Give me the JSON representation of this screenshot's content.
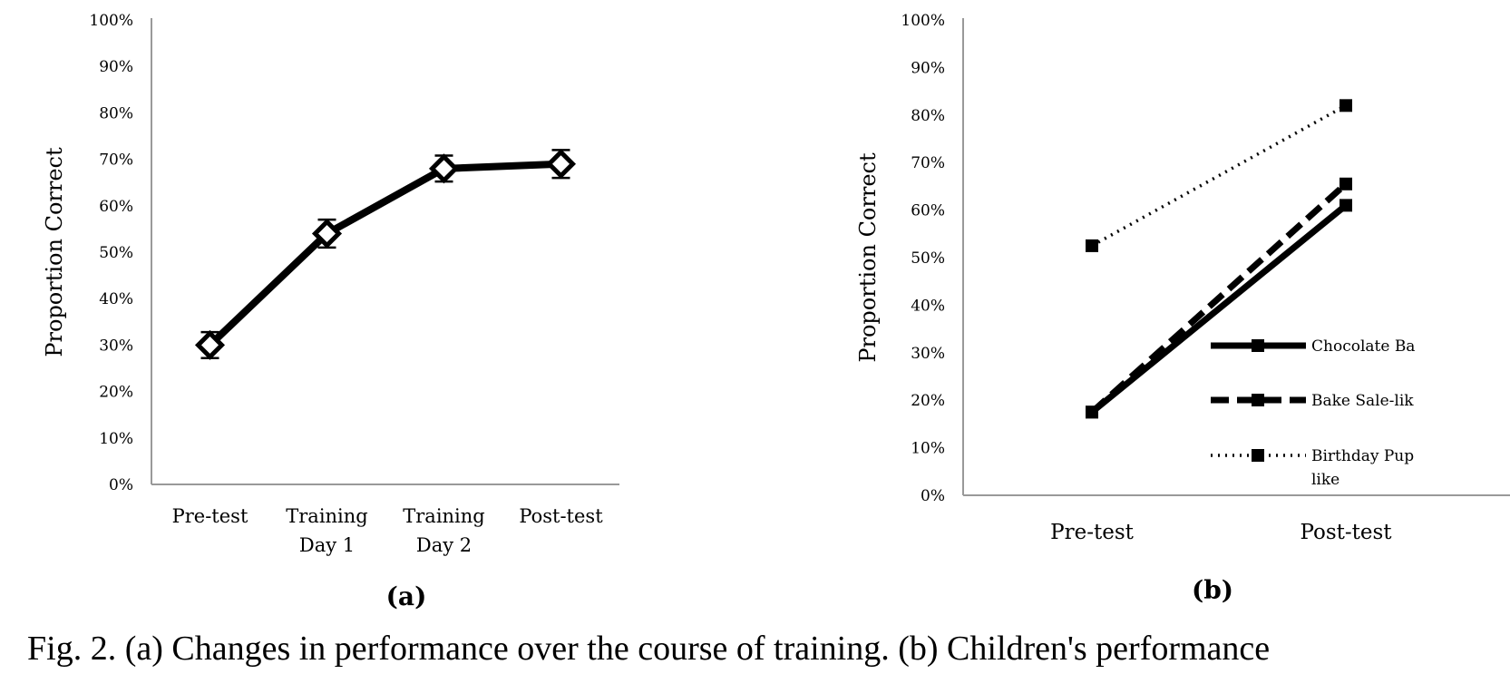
{
  "chart_data": [
    {
      "type": "line",
      "panel_label": "(a)",
      "ylabel": "Proportion Correct",
      "ylim": [
        0,
        100
      ],
      "y_ticks": [
        "0%",
        "10%",
        "20%",
        "30%",
        "40%",
        "50%",
        "60%",
        "70%",
        "80%",
        "90%",
        "100%"
      ],
      "categories": [
        [
          "Pre-test"
        ],
        [
          "Training",
          "Day 1"
        ],
        [
          "Training",
          "Day 2"
        ],
        [
          "Post-test"
        ]
      ],
      "series": [
        {
          "values": [
            30,
            54,
            68,
            69
          ],
          "errors": [
            2.8,
            3.0,
            2.8,
            3.0
          ],
          "marker": "diamond"
        }
      ]
    },
    {
      "type": "line",
      "panel_label": "(b)",
      "ylabel": "Proportion Correct",
      "ylim": [
        0,
        100
      ],
      "y_ticks": [
        "0%",
        "10%",
        "20%",
        "30%",
        "40%",
        "50%",
        "60%",
        "70%",
        "80%",
        "90%",
        "100%"
      ],
      "categories": [
        [
          "Pre-test"
        ],
        [
          "Post-test"
        ]
      ],
      "legend_position": "right",
      "series": [
        {
          "name": "Chocolate Ba",
          "name_line2": "",
          "values": [
            17.5,
            61
          ],
          "style": "solid"
        },
        {
          "name": "Bake Sale-lik",
          "name_line2": "",
          "values": [
            17.5,
            65.5
          ],
          "style": "dashed"
        },
        {
          "name": "Birthday Pup",
          "name_line2": "like",
          "values": [
            52.5,
            82
          ],
          "style": "dotted"
        }
      ]
    }
  ],
  "caption": {
    "text": "Fig. 2. (a) Changes in performance over the course of training. (b) Children's performance"
  }
}
